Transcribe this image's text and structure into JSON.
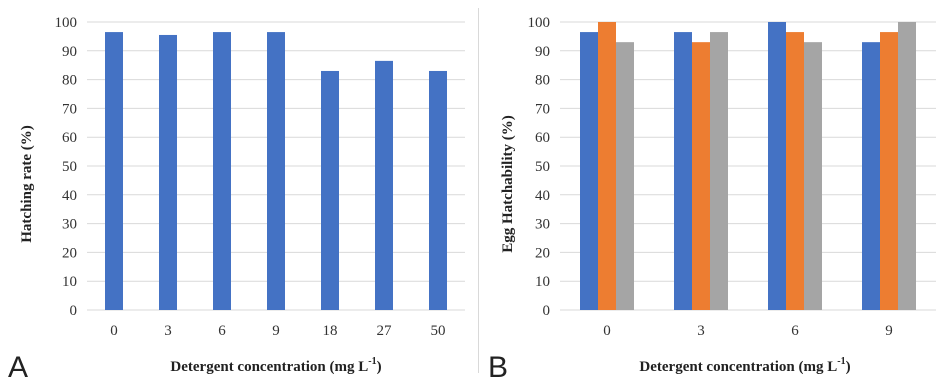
{
  "chart_data": [
    {
      "panel_label": "A",
      "type": "bar",
      "categories": [
        "0",
        "3",
        "6",
        "9",
        "18",
        "27",
        "50"
      ],
      "series": [
        {
          "values": [
            96.5,
            95.5,
            96.5,
            96.5,
            83,
            86.5,
            83
          ],
          "color": "#4472C4"
        }
      ],
      "xlabel": "Detergent concentration (mg L",
      "xlabel_sup": "-1",
      "xlabel_end": ")",
      "ylabel": "Hatching rate (%)",
      "ylim": [
        0,
        100
      ],
      "yticks": [
        "0",
        "10",
        "20",
        "30",
        "40",
        "50",
        "60",
        "70",
        "80",
        "90",
        "100"
      ],
      "grid": true
    },
    {
      "panel_label": "B",
      "type": "bar",
      "categories": [
        "0",
        "3",
        "6",
        "9"
      ],
      "series": [
        {
          "values": [
            96.5,
            96.5,
            100,
            93
          ],
          "color": "#4472C4"
        },
        {
          "values": [
            100,
            93,
            96.5,
            96.5
          ],
          "color": "#ED7D31"
        },
        {
          "values": [
            93,
            96.5,
            93,
            100
          ],
          "color": "#A5A5A5"
        }
      ],
      "xlabel": "Detergent concentration (mg L",
      "xlabel_sup": "-1",
      "xlabel_end": ")",
      "ylabel": "Egg Hatchability (%)",
      "ylim": [
        0,
        100
      ],
      "yticks": [
        "0",
        "10",
        "20",
        "30",
        "40",
        "50",
        "60",
        "70",
        "80",
        "90",
        "100"
      ],
      "grid": true
    }
  ]
}
